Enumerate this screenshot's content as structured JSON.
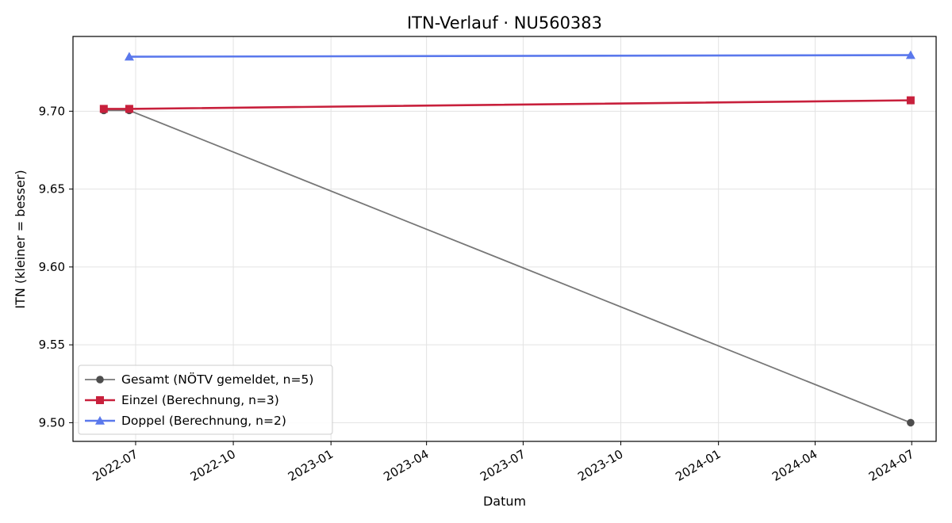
{
  "chart_data": {
    "type": "line",
    "title": "ITN-Verlauf · NU560383",
    "xlabel": "Datum",
    "ylabel": "ITN  (kleiner = besser)",
    "x_axis_type": "date",
    "xlim": [
      "2022-05-03",
      "2024-07-24"
    ],
    "ylim": [
      9.488,
      9.748
    ],
    "x_ticks": [
      "2022-07",
      "2022-10",
      "2023-01",
      "2023-04",
      "2023-07",
      "2023-10",
      "2024-01",
      "2024-04",
      "2024-07"
    ],
    "y_ticks": [
      9.5,
      9.55,
      9.6,
      9.65,
      9.7
    ],
    "y_tick_labels": [
      "9.50",
      "9.55",
      "9.60",
      "9.65",
      "9.70"
    ],
    "grid": true,
    "legend_position": "lower-left",
    "series": [
      {
        "name": "Gesamt (NÖTV gemeldet, n=5)",
        "color": "#777777",
        "marker_color": "#4d4d4d",
        "marker": "circle",
        "points": [
          {
            "x": "2022-06-01",
            "y": 9.7005
          },
          {
            "x": "2022-06-25",
            "y": 9.7005
          },
          {
            "x": "2024-06-30",
            "y": 9.5
          }
        ]
      },
      {
        "name": "Einzel (Berechnung, n=3)",
        "color": "#c8203c",
        "marker_color": "#c8203c",
        "marker": "square",
        "points": [
          {
            "x": "2022-06-01",
            "y": 9.7015
          },
          {
            "x": "2022-06-25",
            "y": 9.7015
          },
          {
            "x": "2024-06-30",
            "y": 9.707
          }
        ]
      },
      {
        "name": "Doppel (Berechnung, n=2)",
        "color": "#5a78ec",
        "marker_color": "#5a78ec",
        "marker": "triangle",
        "points": [
          {
            "x": "2022-06-25",
            "y": 9.735
          },
          {
            "x": "2024-06-30",
            "y": 9.736
          }
        ]
      }
    ]
  }
}
